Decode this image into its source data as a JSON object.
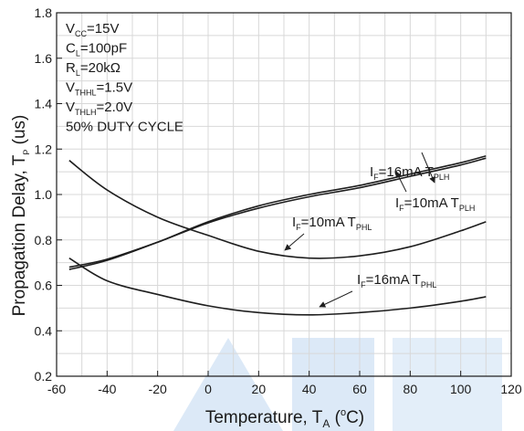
{
  "chart_data": {
    "type": "line",
    "title": "",
    "xlabel": "Temperature, T",
    "xlabel_sub": "A",
    "xlabel_unit_open": " (",
    "xlabel_unit_sup": "o",
    "xlabel_unit_close": "C)",
    "ylabel": "Propagation Delay, T",
    "ylabel_sub": "P",
    "ylabel_unit": " (us)",
    "xlim": [
      -60,
      120
    ],
    "ylim": [
      0.2,
      1.8
    ],
    "xticks": [
      -60,
      -40,
      -20,
      0,
      20,
      40,
      60,
      80,
      100,
      120
    ],
    "yticks": [
      0.2,
      0.4,
      0.6,
      0.8,
      1.0,
      1.2,
      1.4,
      1.6,
      1.8
    ],
    "ytick_labels": [
      "0.2",
      "0.4",
      "0.6",
      "0.8",
      "1.0",
      "1.2",
      "1.4",
      "1.6",
      "1.8"
    ],
    "grid": true,
    "series": [
      {
        "name": "IF=16mA TPLH",
        "x": [
          -55,
          -40,
          -20,
          0,
          20,
          40,
          60,
          80,
          100,
          110
        ],
        "y": [
          0.67,
          0.71,
          0.79,
          0.88,
          0.95,
          1.0,
          1.04,
          1.09,
          1.14,
          1.17
        ]
      },
      {
        "name": "IF=10mA TPLH",
        "x": [
          -55,
          -40,
          -20,
          0,
          20,
          40,
          60,
          80,
          100,
          110
        ],
        "y": [
          0.68,
          0.715,
          0.79,
          0.875,
          0.94,
          0.99,
          1.03,
          1.08,
          1.13,
          1.16
        ]
      },
      {
        "name": "IF=10mA TPHL",
        "x": [
          -55,
          -40,
          -20,
          0,
          20,
          40,
          60,
          80,
          100,
          110
        ],
        "y": [
          1.15,
          1.02,
          0.9,
          0.82,
          0.75,
          0.72,
          0.73,
          0.77,
          0.84,
          0.88
        ]
      },
      {
        "name": "IF=16mA TPHL",
        "x": [
          -55,
          -40,
          -20,
          0,
          20,
          40,
          60,
          80,
          100,
          110
        ],
        "y": [
          0.72,
          0.62,
          0.56,
          0.51,
          0.48,
          0.47,
          0.48,
          0.5,
          0.53,
          0.55
        ]
      }
    ],
    "conditions": [
      {
        "main": "V",
        "sub": "CC",
        "rest": "=15V"
      },
      {
        "main": "C",
        "sub": "L",
        "rest": "=100pF"
      },
      {
        "main": "R",
        "sub": "L",
        "rest": "=20kΩ"
      },
      {
        "main": "V",
        "sub": "THHL",
        "rest": "=1.5V"
      },
      {
        "main": "V",
        "sub": "THLH",
        "rest": "=2.0V"
      },
      {
        "main": "50% DUTY CYCLE",
        "sub": "",
        "rest": ""
      }
    ],
    "annotations": [
      {
        "pre": "I",
        "pre_sub": "F",
        "mid": "=16mA  T",
        "post_sub": "PLH"
      },
      {
        "pre": "I",
        "pre_sub": "F",
        "mid": "=10mA  T",
        "post_sub": "PLH"
      },
      {
        "pre": "I",
        "pre_sub": "F",
        "mid": "=10mA  T",
        "post_sub": "PHL"
      },
      {
        "pre": "I",
        "pre_sub": "F",
        "mid": "=16mA  T",
        "post_sub": "PHL"
      }
    ]
  }
}
